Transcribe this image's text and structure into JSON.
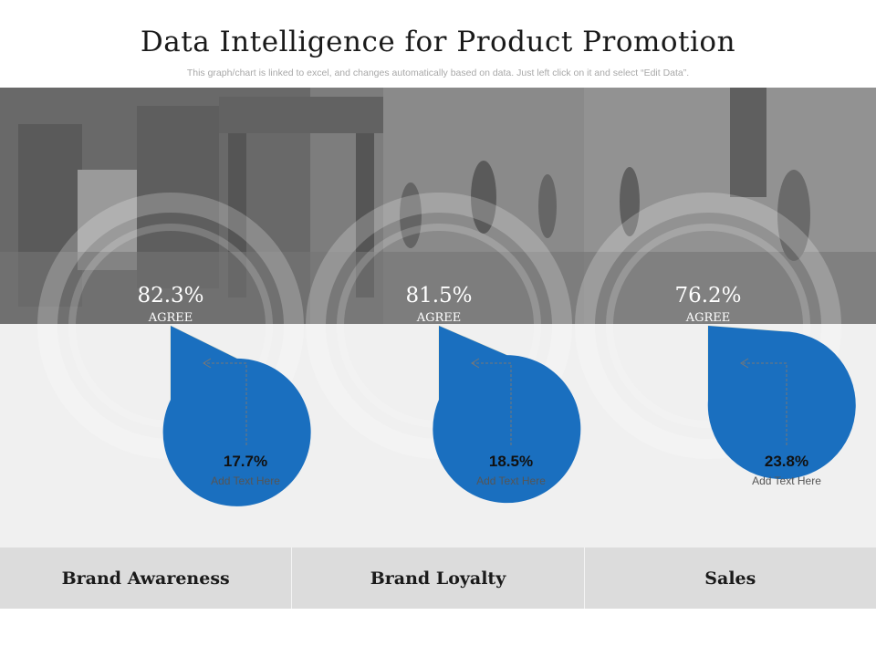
{
  "title": "Data Intelligence for Product Promotion",
  "subtitle": "This graph/chart is linked to excel, and changes automatically based on data. Just left click on it and select “Edit Data”.",
  "colors": {
    "agree": "#1a6fbf",
    "rest": "#f3f1dc",
    "band": "#f0f0f0",
    "footer": "#dcdcdc"
  },
  "chart_data": [
    {
      "type": "pie",
      "title": "Brand Awareness",
      "slices": [
        {
          "label": "AGREE",
          "value": 82.3
        },
        {
          "label": "Add Text Here",
          "value": 17.7
        }
      ],
      "center_value": "82.3%",
      "center_label": "AGREE",
      "callout_value": "17.7%",
      "callout_text": "Add Text Here"
    },
    {
      "type": "pie",
      "title": "Brand Loyalty",
      "slices": [
        {
          "label": "AGREE",
          "value": 81.5
        },
        {
          "label": "Add Text Here",
          "value": 18.5
        }
      ],
      "center_value": "81.5%",
      "center_label": "AGREE",
      "callout_value": "18.5%",
      "callout_text": "Add Text Here"
    },
    {
      "type": "pie",
      "title": "Sales",
      "slices": [
        {
          "label": "AGREE",
          "value": 76.2
        },
        {
          "label": "Add Text Here",
          "value": 23.8
        }
      ],
      "center_value": "76.2%",
      "center_label": "AGREE",
      "callout_value": "23.8%",
      "callout_text": "Add Text Here"
    }
  ]
}
